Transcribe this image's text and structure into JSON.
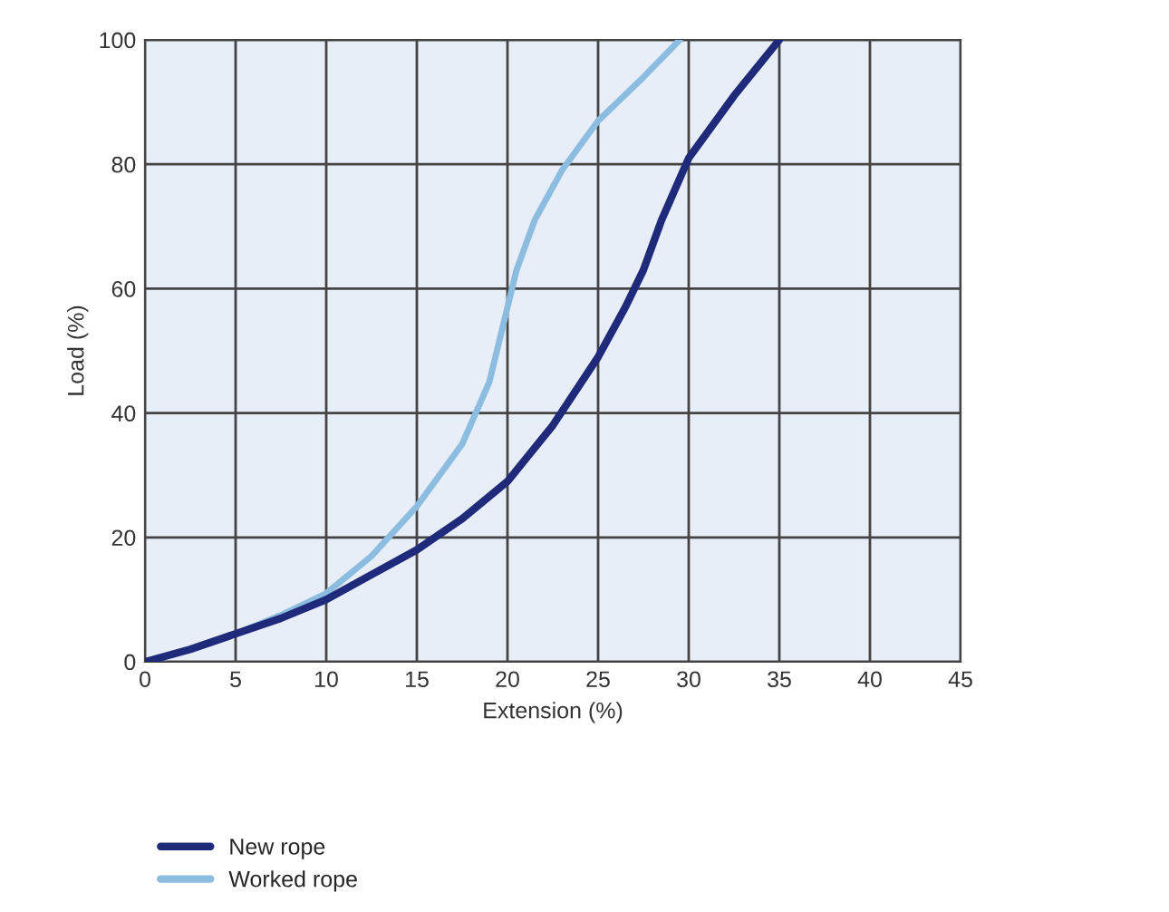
{
  "chart_data": {
    "type": "line",
    "xlabel": "Extension (%)",
    "ylabel": "Load (%)",
    "xlim": [
      0,
      45
    ],
    "ylim": [
      0,
      100
    ],
    "xticks": [
      0,
      5,
      10,
      15,
      20,
      25,
      30,
      35,
      40,
      45
    ],
    "yticks": [
      0,
      20,
      40,
      60,
      80,
      100
    ],
    "grid": true,
    "legend": "bottom left",
    "marker": "none",
    "line_style": "solid",
    "series": [
      {
        "name": "New rope",
        "color": "#1f2a7a",
        "x": [
          0,
          2.5,
          5,
          7.5,
          10,
          12.5,
          15,
          17.5,
          20,
          22.5,
          25,
          26.5,
          27.5,
          28.5,
          30,
          32.5,
          35
        ],
        "values": [
          0,
          2,
          4.5,
          7,
          10,
          14,
          18,
          23,
          29,
          38,
          49,
          57,
          63,
          71,
          81,
          91,
          100
        ]
      },
      {
        "name": "Worked rope",
        "color": "#8cbde0",
        "x": [
          0,
          2.5,
          5,
          7.5,
          10,
          12.5,
          15,
          17.5,
          19,
          20,
          20.5,
          21.5,
          23,
          25,
          27.5,
          29.5
        ],
        "values": [
          0,
          2,
          4.5,
          7.5,
          11,
          17,
          25,
          35,
          45,
          57,
          63,
          71,
          79,
          87,
          94,
          100
        ]
      }
    ]
  }
}
